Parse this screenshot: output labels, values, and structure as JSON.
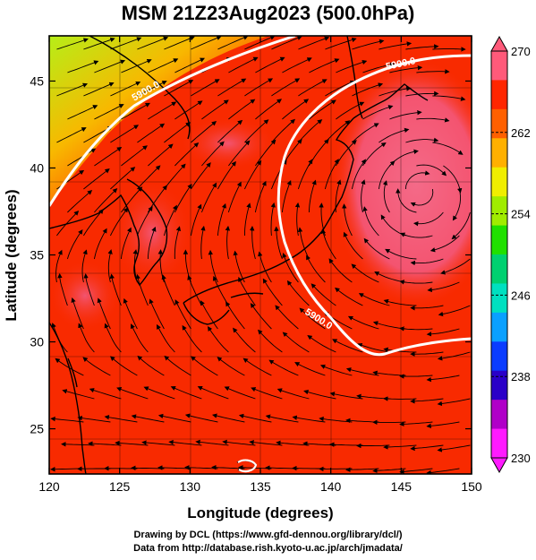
{
  "title": "MSM 21Z23Aug2023 (500.0hPa)",
  "axes": {
    "xlabel": "Longitude (degrees)",
    "ylabel": "Latitude  (degrees)",
    "xticks": [
      120,
      125,
      130,
      135,
      140,
      145,
      150
    ],
    "yticks": [
      25,
      30,
      35,
      40,
      45
    ],
    "xlim": [
      120,
      150
    ],
    "ylim": [
      22.4,
      47.6
    ]
  },
  "colorbar": {
    "ticks": [
      230,
      238,
      246,
      254,
      262,
      270
    ],
    "range": [
      230,
      270
    ],
    "colors": [
      "#ff1aff",
      "#b000c8",
      "#2a00c8",
      "#0a3cff",
      "#0aa0ff",
      "#00e0c0",
      "#00d070",
      "#20e000",
      "#a0ec00",
      "#f0ee00",
      "#ffb000",
      "#ff6000",
      "#ff2600",
      "#ff5a7a"
    ]
  },
  "map": {
    "field_color": "#f82a00",
    "warm_color": "#f4607a",
    "northwest_color": "#9eea18",
    "contour_labels": [
      "5900.0",
      "5900.0",
      "5900.0"
    ]
  },
  "footer": {
    "line1": "Drawing by DCL (https://www.gfd-dennou.org/library/dcl/)",
    "line2": "Data from http://database.rish.kyoto-u.ac.jp/arch/jmadata/"
  }
}
